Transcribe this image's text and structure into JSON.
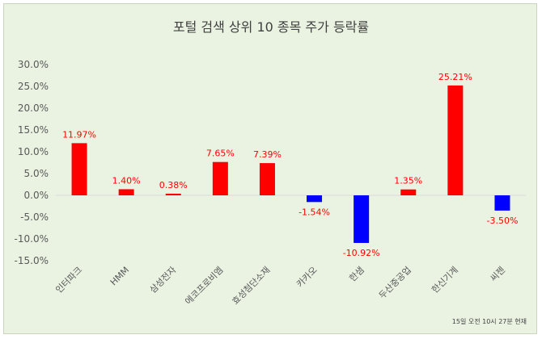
{
  "chart_data": {
    "type": "bar",
    "title": "포털 검색 상위 10 종목 주가 등락률",
    "categories": [
      "인터파크",
      "HMM",
      "삼성전자",
      "에코프로비엠",
      "효성첨단소재",
      "카카오",
      "한샘",
      "두산중공업",
      "한신기계",
      "씨젠"
    ],
    "values": [
      11.97,
      1.4,
      0.38,
      7.65,
      7.39,
      -1.54,
      -10.92,
      1.35,
      25.21,
      -3.5
    ],
    "data_labels": [
      "11.97%",
      "1.40%",
      "0.38%",
      "7.65%",
      "7.39%",
      "-1.54%",
      "-10.92%",
      "1.35%",
      "25.21%",
      "-3.50%"
    ],
    "y_tick_labels": [
      "30.0%",
      "25.0%",
      "20.0%",
      "15.0%",
      "10.0%",
      "5.0%",
      "0.0%",
      "-5.0%",
      "-10.0%",
      "-15.0%"
    ],
    "y_ticks": [
      30,
      25,
      20,
      15,
      10,
      5,
      0,
      -5,
      -10,
      -15
    ],
    "ylim": [
      -15,
      30
    ],
    "xlabel": "",
    "ylabel": "",
    "grid": false,
    "legend": "none",
    "colors": {
      "positive": "#ff0000",
      "negative": "#0000ff",
      "label": "#ff0000",
      "background": "#eaf3e2"
    },
    "footnote": "15일 오전 10시 27분 현재"
  }
}
